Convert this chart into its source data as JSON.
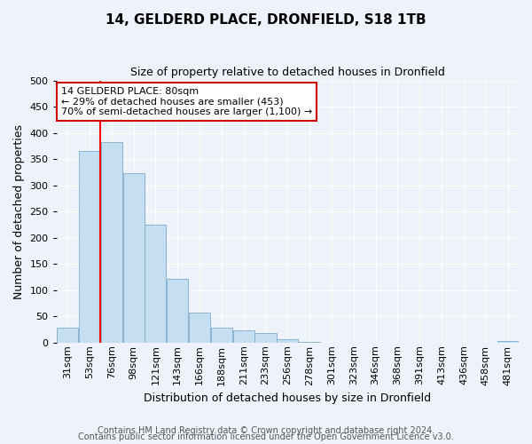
{
  "title": "14, GELDERD PLACE, DRONFIELD, S18 1TB",
  "subtitle": "Size of property relative to detached houses in Dronfield",
  "xlabel": "Distribution of detached houses by size in Dronfield",
  "ylabel": "Number of detached properties",
  "footnote1": "Contains HM Land Registry data © Crown copyright and database right 2024.",
  "footnote2": "Contains public sector information licensed under the Open Government Licence v3.0.",
  "bar_labels": [
    "31sqm",
    "53sqm",
    "76sqm",
    "98sqm",
    "121sqm",
    "143sqm",
    "166sqm",
    "188sqm",
    "211sqm",
    "233sqm",
    "256sqm",
    "278sqm",
    "301sqm",
    "323sqm",
    "346sqm",
    "368sqm",
    "391sqm",
    "413sqm",
    "436sqm",
    "458sqm",
    "481sqm"
  ],
  "bar_values": [
    28,
    365,
    383,
    323,
    225,
    121,
    58,
    28,
    23,
    18,
    7,
    1,
    0,
    0,
    0,
    0,
    0,
    0,
    0,
    0,
    3
  ],
  "bar_color": "#c6dff0",
  "bar_edge_color": "#8ab4d4",
  "ylim": [
    0,
    500
  ],
  "yticks": [
    0,
    50,
    100,
    150,
    200,
    250,
    300,
    350,
    400,
    450,
    500
  ],
  "red_line_index": 2,
  "annotation_title": "14 GELDERD PLACE: 80sqm",
  "annotation_line1": "← 29% of detached houses are smaller (453)",
  "annotation_line2": "70% of semi-detached houses are larger (1,100) →",
  "annotation_box_facecolor": "#ffffff",
  "annotation_box_edgecolor": "#cc0000",
  "background_color": "#eef2fa",
  "grid_color": "#ffffff",
  "title_fontsize": 11,
  "subtitle_fontsize": 9,
  "ylabel_fontsize": 9,
  "xlabel_fontsize": 9,
  "tick_fontsize": 8,
  "annotation_fontsize": 8,
  "footnote_fontsize": 7
}
